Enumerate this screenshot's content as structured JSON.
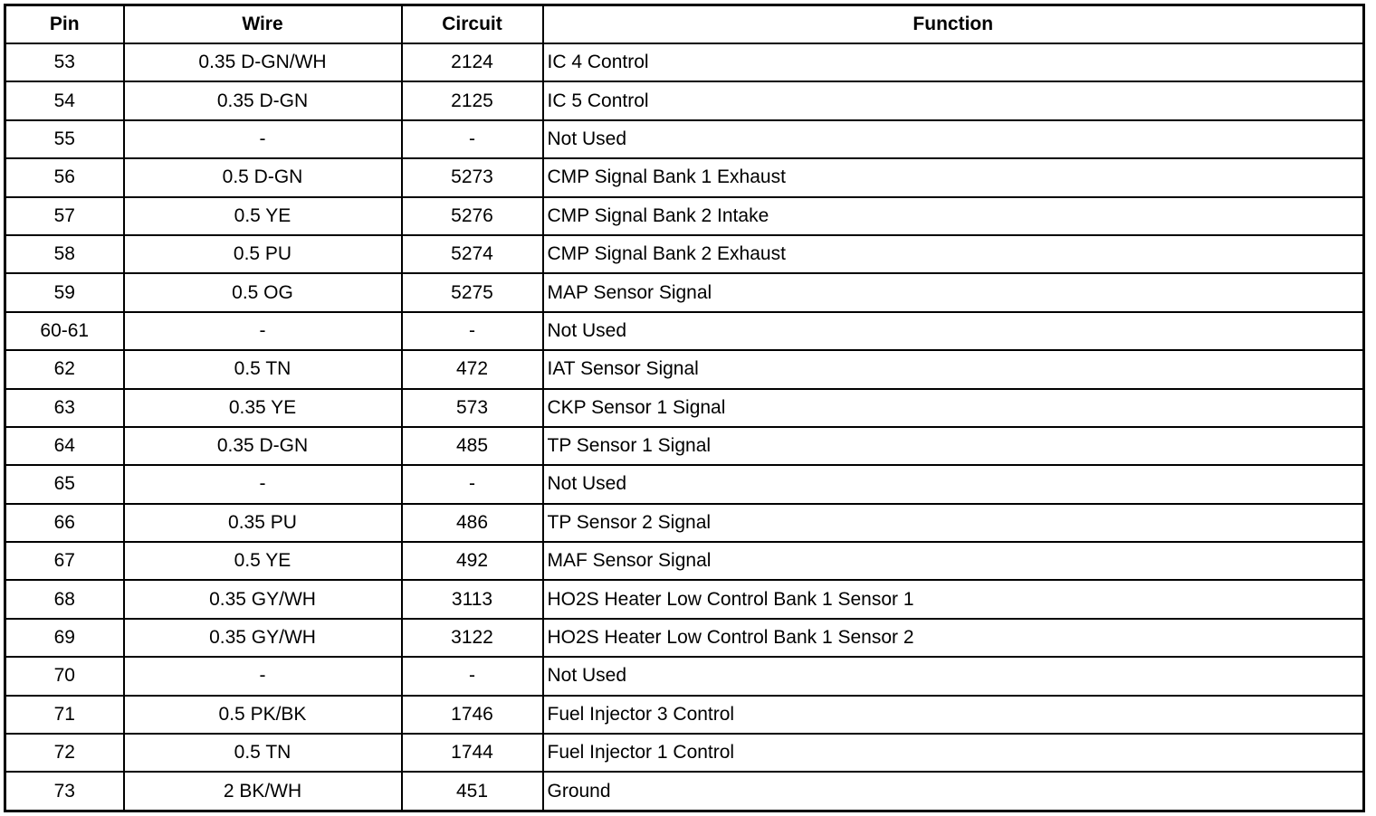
{
  "table": {
    "headers": [
      "Pin",
      "Wire",
      "Circuit",
      "Function"
    ],
    "rows": [
      [
        "53",
        "0.35 D-GN/WH",
        "2124",
        "IC 4 Control"
      ],
      [
        "54",
        "0.35 D-GN",
        "2125",
        "IC 5 Control"
      ],
      [
        "55",
        "-",
        "-",
        "Not Used"
      ],
      [
        "56",
        "0.5 D-GN",
        "5273",
        "CMP Signal Bank 1 Exhaust"
      ],
      [
        "57",
        "0.5 YE",
        "5276",
        "CMP Signal Bank 2 Intake"
      ],
      [
        "58",
        "0.5 PU",
        "5274",
        "CMP Signal Bank 2 Exhaust"
      ],
      [
        "59",
        "0.5 OG",
        "5275",
        "MAP Sensor Signal"
      ],
      [
        "60-61",
        "-",
        "-",
        "Not Used"
      ],
      [
        "62",
        "0.5 TN",
        "472",
        "IAT Sensor Signal"
      ],
      [
        "63",
        "0.35 YE",
        "573",
        "CKP Sensor 1 Signal"
      ],
      [
        "64",
        "0.35 D-GN",
        "485",
        "TP Sensor 1 Signal"
      ],
      [
        "65",
        "-",
        "-",
        "Not Used"
      ],
      [
        "66",
        "0.35 PU",
        "486",
        "TP Sensor 2 Signal"
      ],
      [
        "67",
        "0.5 YE",
        "492",
        "MAF Sensor Signal"
      ],
      [
        "68",
        "0.35 GY/WH",
        "3113",
        "HO2S Heater Low Control Bank 1 Sensor 1"
      ],
      [
        "69",
        "0.35 GY/WH",
        "3122",
        "HO2S Heater Low Control Bank 1 Sensor 2"
      ],
      [
        "70",
        "-",
        "-",
        "Not Used"
      ],
      [
        "71",
        "0.5 PK/BK",
        "1746",
        "Fuel Injector 3 Control"
      ],
      [
        "72",
        "0.5 TN",
        "1744",
        "Fuel Injector 1 Control"
      ],
      [
        "73",
        "2 BK/WH",
        "451",
        "Ground"
      ]
    ]
  }
}
